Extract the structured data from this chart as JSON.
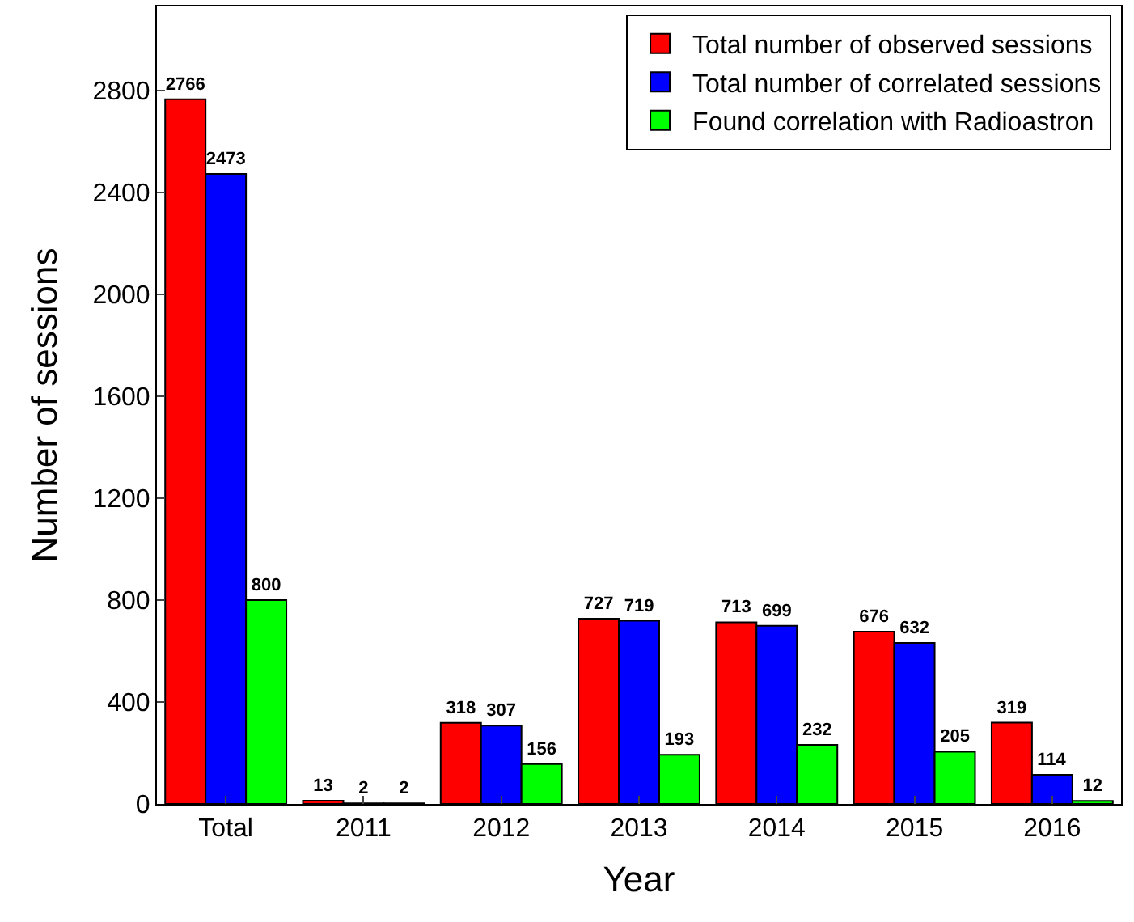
{
  "chart_data": {
    "type": "bar",
    "xlabel": "Year",
    "ylabel": "Number of sessions",
    "categories": [
      "Total",
      "2011",
      "2012",
      "2013",
      "2014",
      "2015",
      "2016"
    ],
    "series": [
      {
        "name": "Total number of observed sessions",
        "color": "#ff0000",
        "values": [
          2766,
          13,
          318,
          727,
          713,
          676,
          319
        ]
      },
      {
        "name": "Total number of correlated sessions",
        "color": "#0000ff",
        "values": [
          2473,
          2,
          307,
          719,
          699,
          632,
          114
        ]
      },
      {
        "name": "Found correlation with Radioastron",
        "color": "#00ff00",
        "values": [
          800,
          2,
          156,
          193,
          232,
          205,
          12
        ]
      }
    ],
    "ylim": [
      0,
      3130
    ],
    "yticks": [
      0,
      400,
      800,
      1200,
      1600,
      2000,
      2400,
      2800
    ],
    "legend": "top right",
    "data_labels": true
  }
}
